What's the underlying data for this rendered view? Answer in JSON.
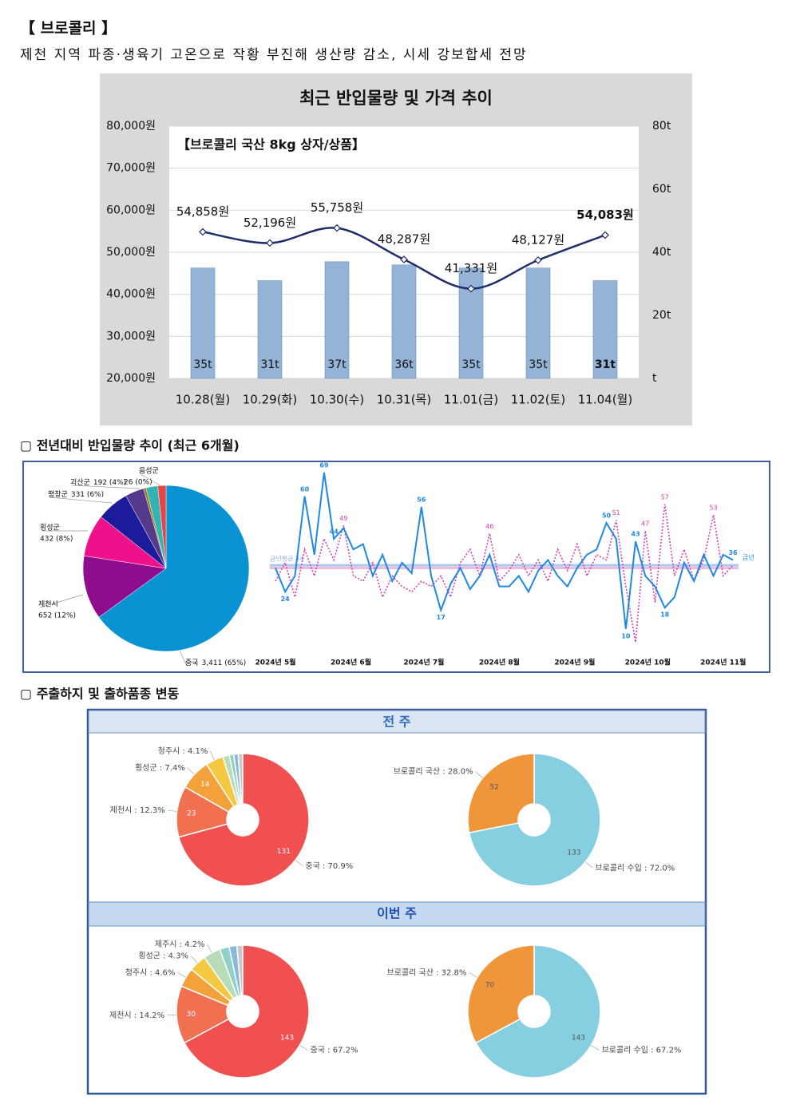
{
  "header": {
    "title": "【 브로콜리 】",
    "subtitle": "제천 지역 파종·생육기 고온으로 작황 부진해 생산량 감소, 시세 강보합세 전망"
  },
  "sections": [
    "▢ 전년대비 반입물량 추이 (최근 6개월)",
    "▢ 주출하지 및 출하품종 변동"
  ],
  "panels": [
    "전 주",
    "이번 주"
  ],
  "chart_data": [
    {
      "type": "combo",
      "title": "최근 반입물량 및 가격 추이",
      "subtitle": "【브로콜리 국산 8kg 상자/상품】",
      "categories": [
        "10.28(월)",
        "10.29(화)",
        "10.30(수)",
        "10.31(목)",
        "11.01(금)",
        "11.02(토)",
        "11.04(월)"
      ],
      "series": [
        {
          "type": "bar",
          "axis": "y2",
          "color": "#95b3d7",
          "values": [
            35,
            31,
            37,
            36,
            35,
            35,
            31
          ],
          "value_labels": [
            "35t",
            "31t",
            "37t",
            "36t",
            "35t",
            "35t",
            "31t"
          ]
        },
        {
          "type": "line",
          "color": "#1f2d6b",
          "values": [
            54858,
            52196,
            55758,
            48287,
            41331,
            48127,
            54083
          ],
          "value_labels": [
            "54,858원",
            "52,196원",
            "55,758원",
            "48,287원",
            "41,331원",
            "48,127원",
            "54,083원"
          ]
        }
      ],
      "ylim": [
        20000,
        80000
      ],
      "yticks": [
        {
          "value": 20000,
          "label": "20,000원"
        },
        {
          "value": 30000,
          "label": "30,000원"
        },
        {
          "value": 40000,
          "label": "40,000원"
        },
        {
          "value": 50000,
          "label": "50,000원"
        },
        {
          "value": 60000,
          "label": "60,000원"
        },
        {
          "value": 70000,
          "label": "70,000원"
        },
        {
          "value": 80000,
          "label": "80,000원"
        }
      ],
      "y2lim": [
        0,
        80
      ],
      "y2ticks": [
        {
          "value": 0,
          "label": "t"
        },
        {
          "value": 20,
          "label": "20t"
        },
        {
          "value": 40,
          "label": "40t"
        },
        {
          "value": 60,
          "label": "60t"
        },
        {
          "value": 80,
          "label": "80t"
        }
      ],
      "grid": true,
      "bold_last": true
    },
    {
      "type": "pie",
      "categories": [
        "중국",
        "제천시",
        "횡성군",
        "평창군",
        "괴산군",
        "음성군",
        null,
        null
      ],
      "values": [
        3411,
        652,
        432,
        331,
        192,
        26,
        120,
        84
      ],
      "value_labels": [
        "3,411 (65%)",
        "652 (12%)",
        "432 (8%)",
        "331 (6%)",
        "192 (4%)",
        "26 (0%)",
        null,
        null
      ],
      "colors": [
        "#0a93d3",
        "#8e0c8e",
        "#ef118b",
        "#1b1b9c",
        "#553a8c",
        "#9a7a12",
        "#35b3b3",
        "#e04848"
      ]
    },
    {
      "type": "line",
      "ylim": [
        0,
        75
      ],
      "xticks": [
        {
          "value": 0,
          "label": "2024년 5월"
        },
        {
          "value": 7.75,
          "label": "2024년 6월"
        },
        {
          "value": 15.25,
          "label": "2024년 7월"
        },
        {
          "value": 23,
          "label": "2024년 8월"
        },
        {
          "value": 30.75,
          "label": "2024년 9월"
        },
        {
          "value": 38.25,
          "label": "2024년 10월"
        },
        {
          "value": 46,
          "label": "2024년 11월"
        }
      ],
      "series": [
        {
          "name": "금년",
          "color": "#1e88e5",
          "values": [
            33,
            24,
            30,
            60,
            38,
            69,
            44,
            48,
            40,
            42,
            30,
            38,
            28,
            35,
            31,
            56,
            30,
            17,
            27,
            33,
            25,
            30,
            38,
            26,
            26,
            30,
            24,
            32,
            36,
            30,
            26,
            33,
            38,
            40,
            50,
            44,
            10,
            43,
            30,
            26,
            18,
            22,
            35,
            28,
            38,
            30,
            38,
            36
          ],
          "value_labels": [
            null,
            "24",
            null,
            "60",
            null,
            "69",
            "44",
            null,
            null,
            null,
            null,
            null,
            null,
            null,
            null,
            "56",
            null,
            "17",
            null,
            null,
            null,
            null,
            null,
            null,
            null,
            null,
            null,
            null,
            null,
            null,
            null,
            null,
            null,
            null,
            "50",
            null,
            "10",
            "43",
            null,
            null,
            "18",
            null,
            null,
            null,
            null,
            null,
            null,
            "36"
          ]
        },
        {
          "color": "#d63fb0",
          "dash": true,
          "values": [
            28,
            35,
            22,
            40,
            30,
            44,
            36,
            49,
            30,
            28,
            35,
            22,
            30,
            26,
            24,
            28,
            26,
            30,
            22,
            35,
            40,
            30,
            46,
            28,
            32,
            38,
            30,
            36,
            28,
            40,
            32,
            42,
            30,
            38,
            36,
            51,
            26,
            5,
            47,
            20,
            57,
            30,
            40,
            28,
            36,
            53,
            30,
            34
          ],
          "value_labels": [
            null,
            null,
            null,
            null,
            null,
            null,
            null,
            "49",
            null,
            null,
            null,
            null,
            null,
            null,
            null,
            null,
            null,
            null,
            null,
            null,
            null,
            null,
            "46",
            null,
            null,
            null,
            null,
            null,
            null,
            null,
            null,
            null,
            null,
            null,
            null,
            "51",
            null,
            null,
            "47",
            null,
            "57",
            null,
            null,
            null,
            null,
            "53",
            null,
            null
          ]
        }
      ],
      "reference_lines": [
        {
          "value": 34,
          "label": "금년평균 34",
          "color": "#a9c6ee"
        },
        {
          "value": 33,
          "color": "#f2b8d8"
        }
      ]
    },
    {
      "type": "donut",
      "categories": [
        "중국 : 70.9%",
        "제천시 : 12.3%",
        "횡성군 : 7.4%",
        "청주시 : 4.1%",
        null,
        null,
        null,
        null
      ],
      "values": [
        131,
        23,
        14,
        8,
        3,
        2,
        2,
        2
      ],
      "colors": [
        "#f05050",
        "#f07050",
        "#f3a13a",
        "#f5c842",
        "#b9dcb8",
        "#8fd0c9",
        "#8ab8d8",
        "#c8c8c8"
      ]
    },
    {
      "type": "donut",
      "categories": [
        "브로콜리 수입 : 72.0%",
        "브로콜리 국산 : 28.0%"
      ],
      "values": [
        133,
        52
      ],
      "colors": [
        "#85cfe0",
        "#f0963a"
      ]
    },
    {
      "type": "donut",
      "categories": [
        "중국 : 67.2%",
        "제천시 : 14.2%",
        "청주시 : 4.6%",
        "횡성군 : 4.3%",
        "제주시 : 4.2%",
        null,
        null,
        null
      ],
      "values": [
        143,
        30,
        10,
        9,
        9,
        5,
        4,
        3
      ],
      "colors": [
        "#f05050",
        "#f07050",
        "#f3a13a",
        "#f5c842",
        "#b9dcb8",
        "#8fd0c9",
        "#8ab8d8",
        "#c8c8c8"
      ]
    },
    {
      "type": "donut",
      "categories": [
        "브로콜리 수입 : 67.2%",
        "브로콜리 국산 : 32.8%"
      ],
      "values": [
        143,
        70
      ],
      "colors": [
        "#85cfe0",
        "#f0963a"
      ]
    }
  ]
}
